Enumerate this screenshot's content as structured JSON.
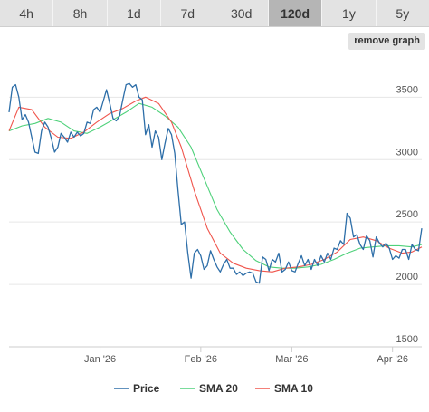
{
  "tabs": [
    {
      "label": "4h",
      "active": false
    },
    {
      "label": "8h",
      "active": false
    },
    {
      "label": "1d",
      "active": false
    },
    {
      "label": "7d",
      "active": false
    },
    {
      "label": "30d",
      "active": false
    },
    {
      "label": "120d",
      "active": true
    },
    {
      "label": "1y",
      "active": false
    },
    {
      "label": "5y",
      "active": false
    }
  ],
  "remove_graph_label": "remove graph",
  "chart_data": {
    "type": "line",
    "title": "",
    "xlabel": "",
    "ylabel": "",
    "ylim": [
      1500,
      3800
    ],
    "yticks": [
      1500,
      2000,
      2500,
      3000,
      3500
    ],
    "x_range": [
      "2025-12-04",
      "2026-04-10"
    ],
    "xticks": [
      {
        "date": "2026-01-01",
        "label": "Jan '26"
      },
      {
        "date": "2026-02-01",
        "label": "Feb '26"
      },
      {
        "date": "2026-03-01",
        "label": "Mar '26"
      },
      {
        "date": "2026-04-01",
        "label": "Apr '26"
      }
    ],
    "grid": true,
    "legend_position": "bottom",
    "series": [
      {
        "name": "Price",
        "color": "#2d6ea8",
        "points": [
          [
            "2025-12-04",
            3380
          ],
          [
            "2025-12-05",
            3580
          ],
          [
            "2025-12-06",
            3600
          ],
          [
            "2025-12-07",
            3500
          ],
          [
            "2025-12-08",
            3320
          ],
          [
            "2025-12-09",
            3360
          ],
          [
            "2025-12-10",
            3300
          ],
          [
            "2025-12-11",
            3180
          ],
          [
            "2025-12-12",
            3060
          ],
          [
            "2025-12-13",
            3050
          ],
          [
            "2025-12-14",
            3230
          ],
          [
            "2025-12-15",
            3300
          ],
          [
            "2025-12-16",
            3260
          ],
          [
            "2025-12-17",
            3170
          ],
          [
            "2025-12-18",
            3060
          ],
          [
            "2025-12-19",
            3100
          ],
          [
            "2025-12-20",
            3210
          ],
          [
            "2025-12-21",
            3180
          ],
          [
            "2025-12-22",
            3140
          ],
          [
            "2025-12-23",
            3220
          ],
          [
            "2025-12-24",
            3180
          ],
          [
            "2025-12-25",
            3220
          ],
          [
            "2025-12-26",
            3190
          ],
          [
            "2025-12-27",
            3210
          ],
          [
            "2025-12-28",
            3300
          ],
          [
            "2025-12-29",
            3290
          ],
          [
            "2025-12-30",
            3400
          ],
          [
            "2025-12-31",
            3420
          ],
          [
            "2026-01-01",
            3380
          ],
          [
            "2026-01-02",
            3470
          ],
          [
            "2026-01-03",
            3560
          ],
          [
            "2026-01-04",
            3450
          ],
          [
            "2026-01-05",
            3330
          ],
          [
            "2026-01-06",
            3310
          ],
          [
            "2026-01-07",
            3350
          ],
          [
            "2026-01-08",
            3480
          ],
          [
            "2026-01-09",
            3600
          ],
          [
            "2026-01-10",
            3610
          ],
          [
            "2026-01-11",
            3580
          ],
          [
            "2026-01-12",
            3600
          ],
          [
            "2026-01-13",
            3500
          ],
          [
            "2026-01-14",
            3480
          ],
          [
            "2026-01-15",
            3200
          ],
          [
            "2026-01-16",
            3280
          ],
          [
            "2026-01-17",
            3100
          ],
          [
            "2026-01-18",
            3230
          ],
          [
            "2026-01-19",
            3180
          ],
          [
            "2026-01-20",
            3000
          ],
          [
            "2026-01-21",
            3130
          ],
          [
            "2026-01-22",
            3250
          ],
          [
            "2026-01-23",
            3200
          ],
          [
            "2026-01-24",
            3050
          ],
          [
            "2026-01-25",
            2750
          ],
          [
            "2026-01-26",
            2480
          ],
          [
            "2026-01-27",
            2500
          ],
          [
            "2026-01-28",
            2250
          ],
          [
            "2026-01-29",
            2050
          ],
          [
            "2026-01-30",
            2250
          ],
          [
            "2026-01-31",
            2280
          ],
          [
            "2026-02-01",
            2230
          ],
          [
            "2026-02-02",
            2120
          ],
          [
            "2026-02-03",
            2150
          ],
          [
            "2026-02-04",
            2270
          ],
          [
            "2026-02-05",
            2200
          ],
          [
            "2026-02-06",
            2140
          ],
          [
            "2026-02-07",
            2100
          ],
          [
            "2026-02-08",
            2160
          ],
          [
            "2026-02-09",
            2200
          ],
          [
            "2026-02-10",
            2130
          ],
          [
            "2026-02-11",
            2130
          ],
          [
            "2026-02-12",
            2080
          ],
          [
            "2026-02-13",
            2100
          ],
          [
            "2026-02-14",
            2070
          ],
          [
            "2026-02-15",
            2090
          ],
          [
            "2026-02-16",
            2100
          ],
          [
            "2026-02-17",
            2090
          ],
          [
            "2026-02-18",
            2020
          ],
          [
            "2026-02-19",
            2010
          ],
          [
            "2026-02-20",
            2220
          ],
          [
            "2026-02-21",
            2200
          ],
          [
            "2026-02-22",
            2110
          ],
          [
            "2026-02-23",
            2200
          ],
          [
            "2026-02-24",
            2180
          ],
          [
            "2026-02-25",
            2250
          ],
          [
            "2026-02-26",
            2100
          ],
          [
            "2026-02-27",
            2120
          ],
          [
            "2026-02-28",
            2180
          ],
          [
            "2026-03-01",
            2110
          ],
          [
            "2026-03-02",
            2100
          ],
          [
            "2026-03-03",
            2170
          ],
          [
            "2026-03-04",
            2230
          ],
          [
            "2026-03-05",
            2150
          ],
          [
            "2026-03-06",
            2200
          ],
          [
            "2026-03-07",
            2120
          ],
          [
            "2026-03-08",
            2200
          ],
          [
            "2026-03-09",
            2150
          ],
          [
            "2026-03-10",
            2230
          ],
          [
            "2026-03-11",
            2180
          ],
          [
            "2026-03-12",
            2250
          ],
          [
            "2026-03-13",
            2200
          ],
          [
            "2026-03-14",
            2290
          ],
          [
            "2026-03-15",
            2280
          ],
          [
            "2026-03-16",
            2350
          ],
          [
            "2026-03-17",
            2320
          ],
          [
            "2026-03-18",
            2570
          ],
          [
            "2026-03-19",
            2530
          ],
          [
            "2026-03-20",
            2380
          ],
          [
            "2026-03-21",
            2400
          ],
          [
            "2026-03-22",
            2320
          ],
          [
            "2026-03-23",
            2280
          ],
          [
            "2026-03-24",
            2390
          ],
          [
            "2026-03-25",
            2350
          ],
          [
            "2026-03-26",
            2220
          ],
          [
            "2026-03-27",
            2380
          ],
          [
            "2026-03-28",
            2330
          ],
          [
            "2026-03-29",
            2300
          ],
          [
            "2026-03-30",
            2330
          ],
          [
            "2026-03-31",
            2290
          ],
          [
            "2026-04-01",
            2200
          ],
          [
            "2026-04-02",
            2230
          ],
          [
            "2026-04-03",
            2210
          ],
          [
            "2026-04-04",
            2280
          ],
          [
            "2026-04-05",
            2280
          ],
          [
            "2026-04-06",
            2200
          ],
          [
            "2026-04-07",
            2320
          ],
          [
            "2026-04-08",
            2280
          ],
          [
            "2026-04-09",
            2270
          ],
          [
            "2026-04-10",
            2450
          ]
        ]
      },
      {
        "name": "SMA 20",
        "color": "#4ed17a",
        "points": [
          [
            "2025-12-04",
            3230
          ],
          [
            "2025-12-08",
            3270
          ],
          [
            "2025-12-12",
            3290
          ],
          [
            "2025-12-16",
            3330
          ],
          [
            "2025-12-20",
            3300
          ],
          [
            "2025-12-24",
            3230
          ],
          [
            "2025-12-28",
            3210
          ],
          [
            "2026-01-01",
            3260
          ],
          [
            "2026-01-05",
            3320
          ],
          [
            "2026-01-09",
            3380
          ],
          [
            "2026-01-13",
            3450
          ],
          [
            "2026-01-17",
            3420
          ],
          [
            "2026-01-21",
            3350
          ],
          [
            "2026-01-25",
            3260
          ],
          [
            "2026-01-29",
            3100
          ],
          [
            "2026-02-02",
            2850
          ],
          [
            "2026-02-06",
            2600
          ],
          [
            "2026-02-10",
            2420
          ],
          [
            "2026-02-14",
            2280
          ],
          [
            "2026-02-18",
            2190
          ],
          [
            "2026-02-22",
            2140
          ],
          [
            "2026-02-26",
            2130
          ],
          [
            "2026-03-02",
            2130
          ],
          [
            "2026-03-06",
            2140
          ],
          [
            "2026-03-10",
            2160
          ],
          [
            "2026-03-14",
            2200
          ],
          [
            "2026-03-18",
            2250
          ],
          [
            "2026-03-22",
            2290
          ],
          [
            "2026-03-26",
            2300
          ],
          [
            "2026-03-30",
            2310
          ],
          [
            "2026-04-03",
            2310
          ],
          [
            "2026-04-07",
            2300
          ],
          [
            "2026-04-10",
            2320
          ]
        ]
      },
      {
        "name": "SMA 10",
        "color": "#f0554c",
        "points": [
          [
            "2025-12-04",
            3230
          ],
          [
            "2025-12-07",
            3420
          ],
          [
            "2025-12-11",
            3400
          ],
          [
            "2025-12-15",
            3260
          ],
          [
            "2025-12-19",
            3180
          ],
          [
            "2025-12-23",
            3170
          ],
          [
            "2025-12-27",
            3220
          ],
          [
            "2025-12-31",
            3300
          ],
          [
            "2026-01-04",
            3370
          ],
          [
            "2026-01-08",
            3410
          ],
          [
            "2026-01-12",
            3470
          ],
          [
            "2026-01-15",
            3500
          ],
          [
            "2026-01-19",
            3450
          ],
          [
            "2026-01-23",
            3300
          ],
          [
            "2026-01-26",
            3100
          ],
          [
            "2026-01-30",
            2750
          ],
          [
            "2026-02-03",
            2450
          ],
          [
            "2026-02-07",
            2250
          ],
          [
            "2026-02-11",
            2170
          ],
          [
            "2026-02-15",
            2130
          ],
          [
            "2026-02-19",
            2110
          ],
          [
            "2026-02-23",
            2100
          ],
          [
            "2026-02-27",
            2130
          ],
          [
            "2026-03-03",
            2140
          ],
          [
            "2026-03-07",
            2160
          ],
          [
            "2026-03-11",
            2200
          ],
          [
            "2026-03-15",
            2260
          ],
          [
            "2026-03-19",
            2360
          ],
          [
            "2026-03-23",
            2380
          ],
          [
            "2026-03-27",
            2350
          ],
          [
            "2026-03-31",
            2290
          ],
          [
            "2026-04-04",
            2250
          ],
          [
            "2026-04-07",
            2260
          ],
          [
            "2026-04-10",
            2300
          ]
        ]
      }
    ]
  }
}
